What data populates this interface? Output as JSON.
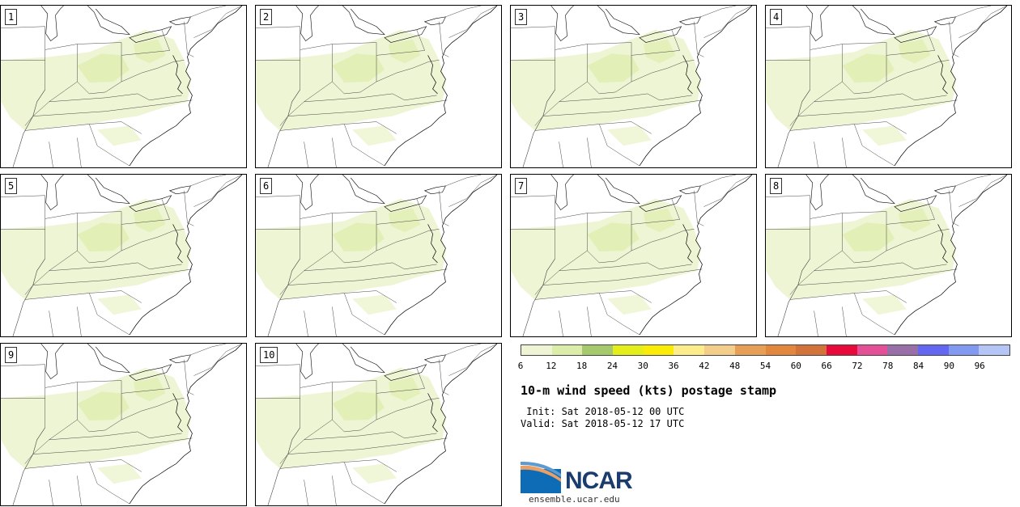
{
  "panels": [
    {
      "label": "1"
    },
    {
      "label": "2"
    },
    {
      "label": "3"
    },
    {
      "label": "4"
    },
    {
      "label": "5"
    },
    {
      "label": "6"
    },
    {
      "label": "7"
    },
    {
      "label": "8"
    },
    {
      "label": "9"
    },
    {
      "label": "10"
    }
  ],
  "colorbar": {
    "ticks": [
      "6",
      "12",
      "18",
      "24",
      "30",
      "36",
      "42",
      "48",
      "54",
      "60",
      "66",
      "72",
      "78",
      "84",
      "90",
      "96"
    ],
    "colors": [
      "#eff5d4",
      "#dcedaa",
      "#a5c96c",
      "#e3ee1a",
      "#faeb08",
      "#fcec8c",
      "#f3cd8a",
      "#e79e55",
      "#e1883e",
      "#d2743a",
      "#e80a3a",
      "#e45096",
      "#986fa6",
      "#6467f2",
      "#8299f2",
      "#b5c5f5"
    ]
  },
  "legend": {
    "title": "10-m wind speed (kts) postage stamp",
    "init": " Init: Sat 2018-05-12 00 UTC",
    "valid": "Valid: Sat 2018-05-12 17 UTC"
  },
  "branding": {
    "logo_text": "NCAR",
    "url": "ensemble.ucar.edu"
  }
}
